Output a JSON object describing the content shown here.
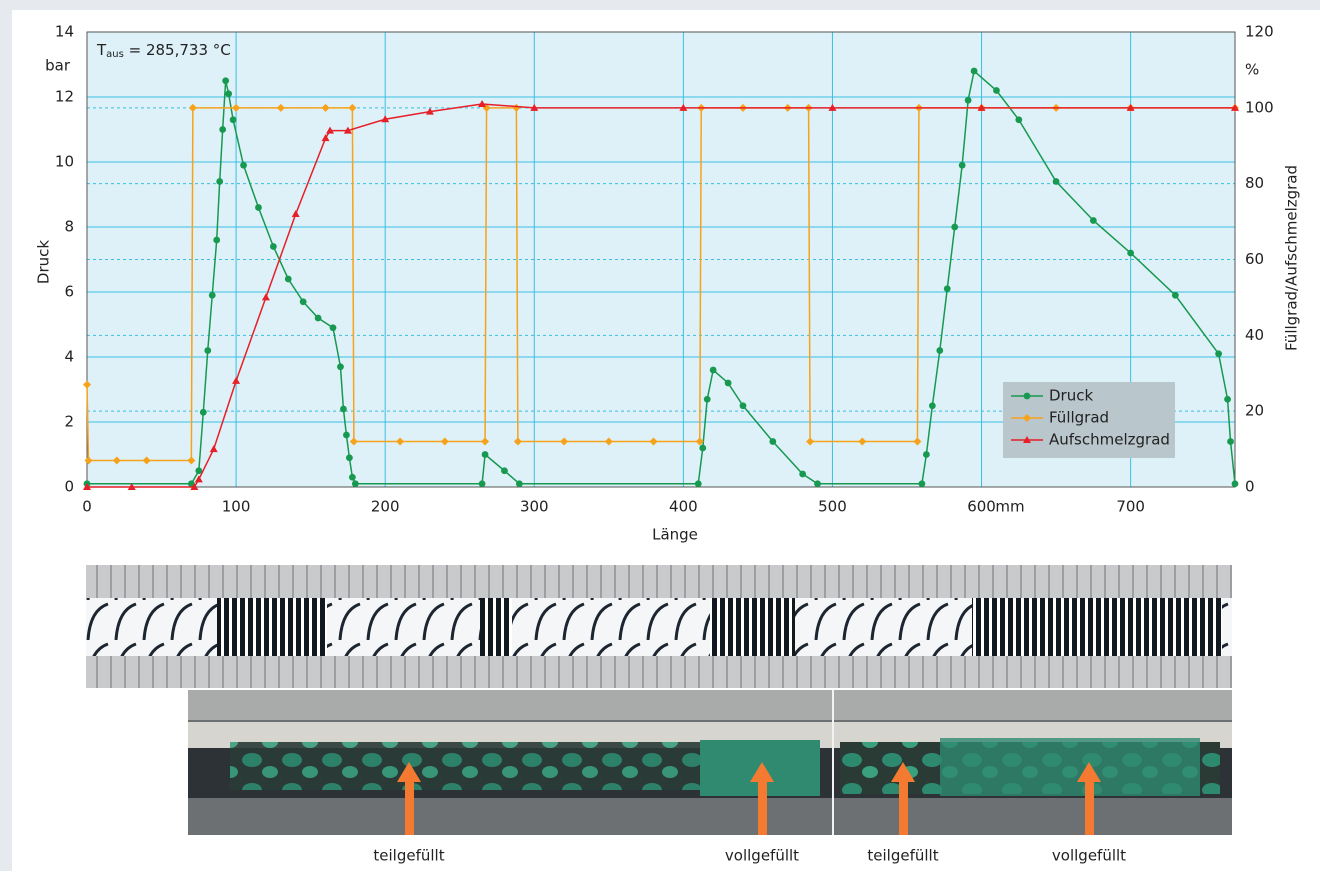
{
  "chart_data": {
    "type": "line",
    "annotation": {
      "base": "T",
      "sub": "aus",
      "rest": " = 285,733 °C"
    },
    "x_label": "Länge",
    "x_unit": "mm",
    "y_label": "Druck",
    "y_unit": "bar",
    "y2_label": "Füllgrad/Aufschmelzgrad",
    "y2_unit": "%",
    "xlim": [
      0,
      770
    ],
    "xticks": [
      0,
      100,
      200,
      300,
      400,
      500,
      600,
      700
    ],
    "ylim": [
      0,
      14
    ],
    "yticks": [
      0,
      2,
      4,
      6,
      8,
      10,
      12,
      14
    ],
    "y2lim": [
      0,
      120
    ],
    "y2ticks": [
      0,
      20,
      40,
      60,
      80,
      100,
      120
    ],
    "grid": true,
    "legend": "lower right",
    "series": [
      {
        "name": "Druck",
        "color": "#17994f",
        "marker": "circle",
        "x": [
          0,
          70,
          75,
          78,
          81,
          84,
          87,
          89,
          91,
          93,
          95,
          98,
          105,
          115,
          125,
          135,
          145,
          155,
          165,
          170,
          172,
          174,
          176,
          178,
          180,
          265,
          267,
          280,
          290,
          410,
          413,
          416,
          420,
          430,
          440,
          460,
          480,
          490,
          560,
          563,
          567,
          572,
          577,
          582,
          587,
          591,
          595,
          610,
          625,
          650,
          675,
          700,
          730,
          759,
          765,
          767,
          770
        ],
        "values": [
          0.1,
          0.1,
          0.5,
          2.3,
          4.2,
          5.9,
          7.6,
          9.4,
          11,
          12.5,
          12.1,
          11.3,
          9.9,
          8.6,
          7.4,
          6.4,
          5.7,
          5.2,
          4.9,
          3.7,
          2.4,
          1.6,
          0.9,
          0.3,
          0.1,
          0.1,
          1.0,
          0.5,
          0.1,
          0.1,
          1.2,
          2.7,
          3.6,
          3.2,
          2.5,
          1.4,
          0.4,
          0.1,
          0.1,
          1.0,
          2.5,
          4.2,
          6.1,
          8.0,
          9.9,
          11.9,
          12.8,
          12.2,
          11.3,
          9.4,
          8.2,
          7.2,
          5.9,
          4.1,
          2.7,
          1.4,
          0.1
        ]
      },
      {
        "name": "Füllgrad",
        "color": "#f7a21b",
        "marker": "diamond",
        "axis": "y2",
        "x": [
          0,
          1,
          20,
          40,
          70,
          71,
          100,
          130,
          160,
          178,
          179,
          210,
          240,
          267,
          268,
          288,
          289,
          320,
          350,
          380,
          411,
          412,
          440,
          470,
          484,
          485,
          520,
          557,
          558,
          600,
          650,
          700,
          770
        ],
        "values": [
          27,
          7,
          7,
          7,
          7,
          100,
          100,
          100,
          100,
          100,
          12,
          12,
          12,
          12,
          100,
          100,
          12,
          12,
          12,
          12,
          12,
          100,
          100,
          100,
          100,
          12,
          12,
          12,
          100,
          100,
          100,
          100,
          100
        ]
      },
      {
        "name": "Aufschmelzgrad",
        "color": "#e61f28",
        "marker": "triangle",
        "axis": "y2",
        "x": [
          0,
          30,
          72,
          75,
          85,
          100,
          120,
          140,
          160,
          163,
          175,
          200,
          230,
          265,
          300,
          400,
          500,
          600,
          700,
          770
        ],
        "values": [
          0,
          0,
          0,
          2,
          10,
          28,
          50,
          72,
          92,
          94,
          94,
          97,
          99,
          101,
          100,
          100,
          100,
          100,
          100,
          100
        ]
      }
    ]
  },
  "photo": {
    "labels": [
      "teilgefüllt",
      "vollgefüllt",
      "teilgefüllt",
      "vollgefüllt"
    ]
  }
}
